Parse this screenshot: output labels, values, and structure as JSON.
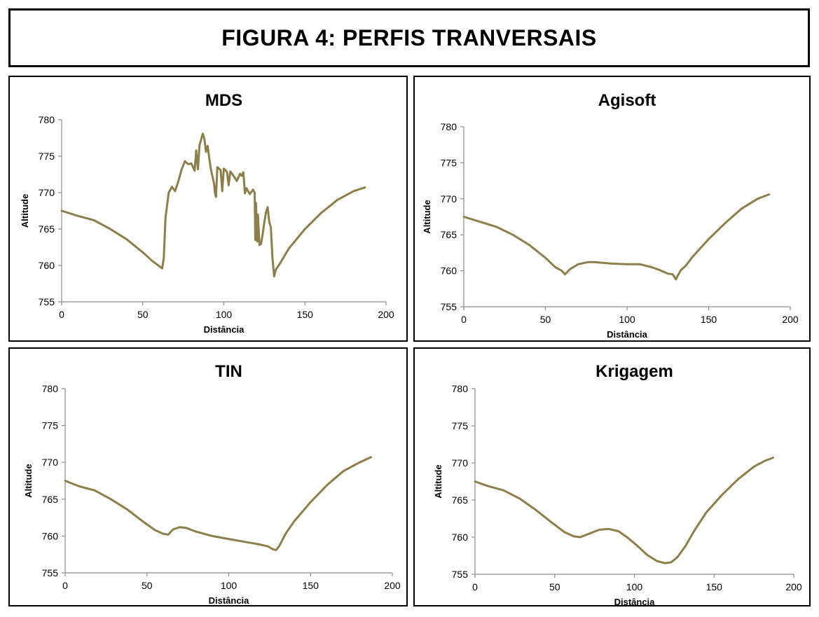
{
  "figure_title": "FIGURA 4: PERFIS TRANVERSAIS",
  "colors": {
    "line": "#8c7f4a",
    "axis": "#8c8c8c"
  },
  "chart_data": [
    {
      "type": "line",
      "title": "MDS",
      "xlabel": "Distância",
      "ylabel": "Altitude",
      "xlim": [
        0,
        200
      ],
      "ylim": [
        755,
        780
      ],
      "xticks": [
        "0",
        "50",
        "100",
        "150",
        "200"
      ],
      "yticks": [
        "755",
        "760",
        "765",
        "770",
        "775",
        "780"
      ],
      "series": [
        {
          "points": [
            [
              0,
              767.5
            ],
            [
              10,
              766.8
            ],
            [
              20,
              766.2
            ],
            [
              30,
              765.0
            ],
            [
              40,
              763.6
            ],
            [
              50,
              761.8
            ],
            [
              56,
              760.6
            ],
            [
              62,
              759.6
            ],
            [
              63,
              761.0
            ],
            [
              64,
              766.5
            ],
            [
              66,
              770.0
            ],
            [
              68,
              770.8
            ],
            [
              70,
              770.2
            ],
            [
              72,
              771.6
            ],
            [
              74,
              773.2
            ],
            [
              76,
              774.3
            ],
            [
              78,
              773.9
            ],
            [
              80,
              774.0
            ],
            [
              82,
              773.0
            ],
            [
              83,
              775.8
            ],
            [
              84,
              773.2
            ],
            [
              85,
              776.5
            ],
            [
              87,
              778.1
            ],
            [
              88,
              777.4
            ],
            [
              89,
              775.6
            ],
            [
              90,
              776.4
            ],
            [
              91,
              774.7
            ],
            [
              92,
              773.2
            ],
            [
              93,
              772.2
            ],
            [
              94,
              771.2
            ],
            [
              94.6,
              769.8
            ],
            [
              95.2,
              769.4
            ],
            [
              96,
              773.5
            ],
            [
              98,
              773.1
            ],
            [
              99,
              770.2
            ],
            [
              100,
              773.3
            ],
            [
              101,
              773.1
            ],
            [
              102,
              772.8
            ],
            [
              103,
              771.0
            ],
            [
              104,
              772.9
            ],
            [
              106,
              772.3
            ],
            [
              108,
              771.6
            ],
            [
              110,
              772.6
            ],
            [
              111,
              772.3
            ],
            [
              112,
              772.8
            ],
            [
              113,
              769.9
            ],
            [
              114,
              770.6
            ],
            [
              116,
              769.8
            ],
            [
              118,
              770.4
            ],
            [
              119,
              770.0
            ],
            [
              119.4,
              763.5
            ],
            [
              119.8,
              768.6
            ],
            [
              120.6,
              763.3
            ],
            [
              121,
              767.0
            ],
            [
              122,
              762.8
            ],
            [
              123,
              763.0
            ],
            [
              124,
              764.4
            ],
            [
              125,
              766.0
            ],
            [
              126,
              767.3
            ],
            [
              127,
              768.0
            ],
            [
              128,
              766.0
            ],
            [
              129,
              765.2
            ],
            [
              130,
              761.0
            ],
            [
              131,
              758.5
            ],
            [
              132,
              759.4
            ],
            [
              135,
              760.4
            ],
            [
              140,
              762.3
            ],
            [
              150,
              765.0
            ],
            [
              160,
              767.2
            ],
            [
              170,
              769.0
            ],
            [
              180,
              770.2
            ],
            [
              187,
              770.7
            ]
          ]
        }
      ]
    },
    {
      "type": "line",
      "title": "Agisoft",
      "xlabel": "Distância",
      "ylabel": "Altitude",
      "xlim": [
        0,
        200
      ],
      "ylim": [
        755,
        780
      ],
      "xticks": [
        "0",
        "50",
        "100",
        "150",
        "200"
      ],
      "yticks": [
        "755",
        "760",
        "765",
        "770",
        "775",
        "780"
      ],
      "series": [
        {
          "points": [
            [
              0,
              767.5
            ],
            [
              10,
              766.8
            ],
            [
              20,
              766.1
            ],
            [
              30,
              765.0
            ],
            [
              40,
              763.6
            ],
            [
              50,
              761.8
            ],
            [
              56,
              760.5
            ],
            [
              60,
              760.0
            ],
            [
              62,
              759.5
            ],
            [
              65,
              760.2
            ],
            [
              70,
              760.9
            ],
            [
              76,
              761.2
            ],
            [
              80,
              761.2
            ],
            [
              90,
              761.0
            ],
            [
              100,
              760.9
            ],
            [
              108,
              760.9
            ],
            [
              115,
              760.5
            ],
            [
              120,
              760.1
            ],
            [
              125,
              759.6
            ],
            [
              128,
              759.5
            ],
            [
              130,
              758.8
            ],
            [
              131,
              759.3
            ],
            [
              133,
              760.1
            ],
            [
              136,
              760.7
            ],
            [
              140,
              761.9
            ],
            [
              150,
              764.4
            ],
            [
              160,
              766.6
            ],
            [
              170,
              768.6
            ],
            [
              180,
              770.0
            ],
            [
              187,
              770.6
            ]
          ]
        }
      ]
    },
    {
      "type": "line",
      "title": "TIN",
      "xlabel": "Distância",
      "ylabel": "Altitude",
      "xlim": [
        0,
        200
      ],
      "ylim": [
        755,
        780
      ],
      "xticks": [
        "0",
        "50",
        "100",
        "150",
        "200"
      ],
      "yticks": [
        "755",
        "760",
        "765",
        "770",
        "775",
        "780"
      ],
      "series": [
        {
          "points": [
            [
              0,
              767.5
            ],
            [
              8,
              766.8
            ],
            [
              18,
              766.2
            ],
            [
              28,
              765.0
            ],
            [
              38,
              763.6
            ],
            [
              48,
              761.9
            ],
            [
              55,
              760.8
            ],
            [
              60,
              760.3
            ],
            [
              63,
              760.2
            ],
            [
              66,
              760.9
            ],
            [
              70,
              761.2
            ],
            [
              74,
              761.1
            ],
            [
              80,
              760.6
            ],
            [
              90,
              760.0
            ],
            [
              100,
              759.6
            ],
            [
              110,
              759.2
            ],
            [
              118,
              758.9
            ],
            [
              124,
              758.6
            ],
            [
              127,
              758.2
            ],
            [
              129,
              758.1
            ],
            [
              131,
              758.7
            ],
            [
              135,
              760.4
            ],
            [
              140,
              762.0
            ],
            [
              150,
              764.6
            ],
            [
              160,
              766.9
            ],
            [
              170,
              768.8
            ],
            [
              180,
              770.0
            ],
            [
              187,
              770.7
            ]
          ]
        }
      ]
    },
    {
      "type": "line",
      "title": "Krigagem",
      "xlabel": "Distância",
      "ylabel": "Altitude",
      "xlim": [
        0,
        200
      ],
      "ylim": [
        755,
        780
      ],
      "xticks": [
        "0",
        "50",
        "100",
        "150",
        "200"
      ],
      "yticks": [
        "755",
        "760",
        "765",
        "770",
        "775",
        "780"
      ],
      "series": [
        {
          "points": [
            [
              0,
              767.5
            ],
            [
              8,
              766.9
            ],
            [
              18,
              766.3
            ],
            [
              28,
              765.2
            ],
            [
              38,
              763.7
            ],
            [
              48,
              762.0
            ],
            [
              56,
              760.7
            ],
            [
              62,
              760.1
            ],
            [
              66,
              760.0
            ],
            [
              72,
              760.5
            ],
            [
              78,
              761.0
            ],
            [
              84,
              761.1
            ],
            [
              90,
              760.8
            ],
            [
              96,
              759.9
            ],
            [
              102,
              758.8
            ],
            [
              108,
              757.6
            ],
            [
              114,
              756.8
            ],
            [
              119,
              756.5
            ],
            [
              123,
              756.6
            ],
            [
              127,
              757.3
            ],
            [
              132,
              758.8
            ],
            [
              138,
              761.0
            ],
            [
              145,
              763.3
            ],
            [
              155,
              765.7
            ],
            [
              165,
              767.8
            ],
            [
              175,
              769.5
            ],
            [
              182,
              770.3
            ],
            [
              187,
              770.7
            ]
          ]
        }
      ]
    }
  ]
}
